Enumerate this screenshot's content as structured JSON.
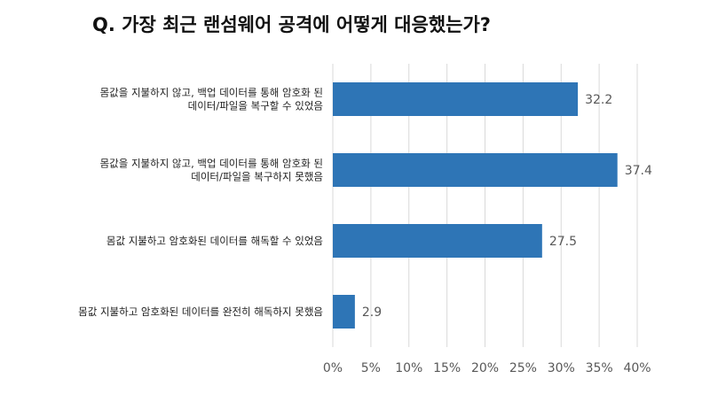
{
  "chart_data": {
    "type": "bar",
    "orientation": "horizontal",
    "title": "Q. 가장 최근 랜섬웨어 공격에 어떻게 대응했는가?",
    "categories": [
      [
        "몸값을 지불하지 않고, 백업 데이터를 통해 암호화 된",
        "데이터/파일을 복구할 수 있었음"
      ],
      [
        "몸값을 지불하지 않고, 백업 데이터를 통해 암호화 된",
        "데이터/파일을 복구하지 못했음"
      ],
      [
        "몸값 지불하고 암호화된 데이터를 해독할 수 있었음"
      ],
      [
        "몸값 지불하고 암호화된 데이터를 완전히 해독하지 못했음"
      ]
    ],
    "values": [
      32.2,
      37.4,
      27.5,
      2.9
    ],
    "value_labels": [
      "32.2",
      "37.4",
      "27.5",
      "2.9"
    ],
    "xlim": [
      0,
      40
    ],
    "ticks": [
      0,
      5,
      10,
      15,
      20,
      25,
      30,
      35,
      40
    ],
    "tick_labels": [
      "0%",
      "5%",
      "10%",
      "15%",
      "20%",
      "25%",
      "30%",
      "35%",
      "40%"
    ],
    "bar_color": "#2e75b6",
    "grid": true,
    "legend": "none"
  }
}
